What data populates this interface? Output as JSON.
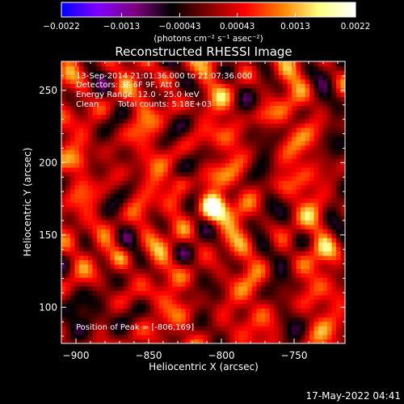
{
  "chart_data": {
    "type": "heatmap",
    "title": "Reconstructed RHESSI Image",
    "xlabel": "Heliocentric X (arcsec)",
    "ylabel": "Heliocentric Y (arcsec)",
    "xlim": [
      -910,
      -715
    ],
    "ylim": [
      75,
      270
    ],
    "x_ticks": [
      -900,
      -850,
      -800,
      -750
    ],
    "x_tick_labels": [
      "−900",
      "−850",
      "−800",
      "−750"
    ],
    "y_ticks": [
      100,
      150,
      200,
      250
    ],
    "y_tick_labels": [
      "100",
      "150",
      "200",
      "250"
    ],
    "colorbar": {
      "range": [
        -0.0022,
        0.0022
      ],
      "ticks": [
        -0.0022,
        -0.0013,
        -0.00043,
        0.00043,
        0.0013,
        0.0022
      ],
      "tick_labels": [
        "−0.0022",
        "−0.0013",
        "−0.00043",
        "0.00043",
        "0.0013",
        "0.0022"
      ],
      "unit_label": "(photons cm⁻² s⁻¹ asec⁻²)",
      "colors": [
        "#0000ff",
        "#8000ff",
        "#800080",
        "#000000",
        "#800000",
        "#ff0000",
        "#ff8000",
        "#ffff80",
        "#ffffff"
      ]
    },
    "annotations": [
      "13-Sep-2014 21:01:36.000 to 21:07:36.000",
      "Detectors: 3F 6F 9F, Att 0",
      "Energy Range: 12.0 - 25.0 keV",
      "Clean",
      "Total counts: 5.18E+03"
    ],
    "peak_label": "Position of Peak = [-806,169]",
    "peak": {
      "x": -806,
      "y": 169,
      "value": 0.0022
    },
    "sources": [
      {
        "x": -806,
        "y": 169,
        "amp": 1.0,
        "sigma": 7
      },
      {
        "x": -828,
        "y": 187,
        "amp": 0.35,
        "sigma": 5
      },
      {
        "x": -773,
        "y": 233,
        "amp": 0.32,
        "sigma": 5
      },
      {
        "x": -897,
        "y": 201,
        "amp": 0.28,
        "sigma": 5
      },
      {
        "x": -870,
        "y": 135,
        "amp": 0.3,
        "sigma": 5
      },
      {
        "x": -728,
        "y": 140,
        "amp": 0.25,
        "sigma": 5
      },
      {
        "x": -835,
        "y": 240,
        "amp": 0.22,
        "sigma": 5
      },
      {
        "x": -760,
        "y": 185,
        "amp": 0.2,
        "sigma": 5
      },
      {
        "x": -850,
        "y": 108,
        "amp": 0.18,
        "sigma": 6
      },
      {
        "x": -890,
        "y": 95,
        "amp": -0.45,
        "sigma": 12
      }
    ],
    "grid": false
  },
  "footer": {
    "timestamp": "17-May-2022 04:41"
  }
}
